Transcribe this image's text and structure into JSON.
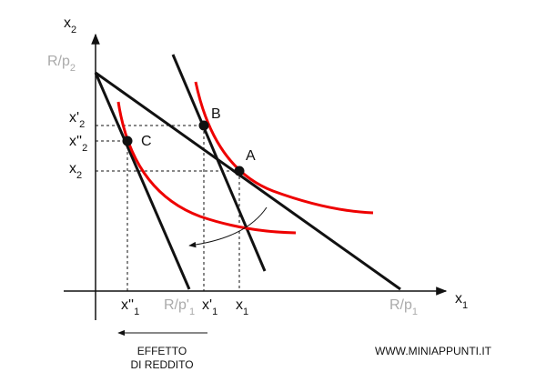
{
  "axes": {
    "y": {
      "text": "x",
      "sub": "2"
    },
    "x": {
      "text": "x",
      "sub": "1"
    }
  },
  "y_labels": [
    {
      "text": "R/p",
      "sub": "2"
    },
    {
      "text": "x'",
      "sub": "2"
    },
    {
      "text": "x''",
      "sub": "2"
    },
    {
      "text": "x",
      "sub": "2"
    }
  ],
  "x_labels": [
    {
      "text": "x''",
      "sub": "1"
    },
    {
      "text": "R/p'",
      "sub": "1"
    },
    {
      "text": "x'",
      "sub": "1"
    },
    {
      "text": "x",
      "sub": "1"
    },
    {
      "text": "R/p",
      "sub": "1"
    }
  ],
  "points": [
    "B",
    "C",
    "A"
  ],
  "effect_label": [
    "EFFETTO",
    "DI REDDITO"
  ],
  "website": "WWW.MINIAPPUNTI.IT"
}
